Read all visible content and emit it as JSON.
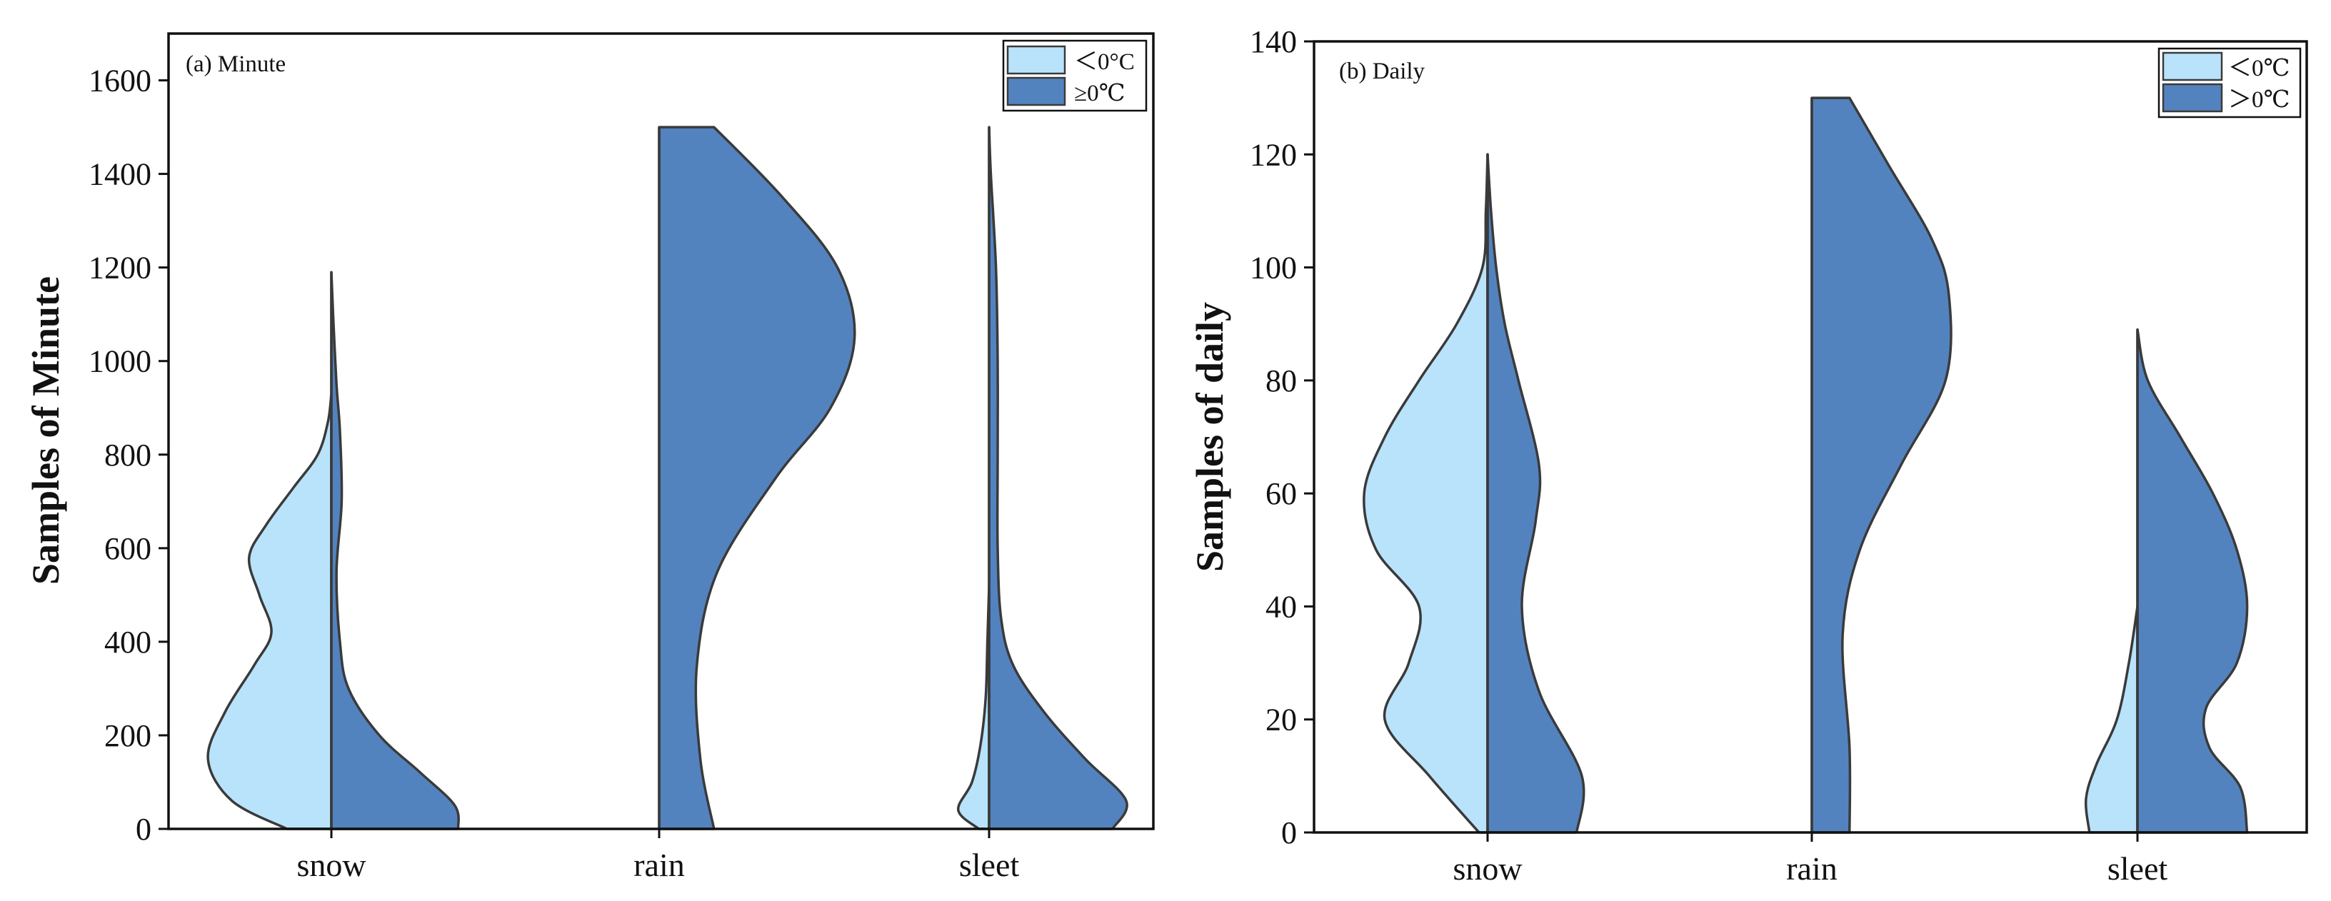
{
  "chart_data": [
    {
      "type": "split-violin",
      "panel_label": "(a) Minute",
      "categories": [
        "snow",
        "rain",
        "sleet"
      ],
      "ylabel": "Samples of Minute",
      "xlabel": "",
      "ylim": [
        0,
        1700
      ],
      "yticks": [
        0,
        200,
        400,
        600,
        800,
        1000,
        1200,
        1400,
        1600
      ],
      "legend": [
        {
          "label": "＜0°C",
          "color": "#b8e3fb",
          "side": "left"
        },
        {
          "label": "≥0℃",
          "color": "#5383bf",
          "side": "right"
        }
      ],
      "legend_position": "top-right",
      "violins": [
        {
          "category": "snow",
          "left": {
            "y": [
              0,
              60,
              150,
              250,
              350,
              420,
              500,
              580,
              650,
              730,
              800,
              870,
              930
            ],
            "w": [
              0.26,
              0.58,
              0.72,
              0.62,
              0.45,
              0.35,
              0.42,
              0.48,
              0.38,
              0.22,
              0.08,
              0.02,
              0
            ]
          },
          "right": {
            "y": [
              0,
              50,
              120,
              200,
              300,
              400,
              550,
              700,
              850,
              950,
              1100,
              1190
            ],
            "w": [
              0.74,
              0.72,
              0.52,
              0.28,
              0.1,
              0.05,
              0.03,
              0.06,
              0.05,
              0.03,
              0.01,
              0
            ]
          }
        },
        {
          "category": "rain",
          "left": null,
          "right": {
            "y": [
              0,
              150,
              350,
              550,
              750,
              900,
              1050,
              1200,
              1350,
              1500
            ],
            "w": [
              0.32,
              0.24,
              0.22,
              0.34,
              0.68,
              1.0,
              1.14,
              1.04,
              0.72,
              0.32
            ]
          }
        },
        {
          "category": "sleet",
          "left": {
            "y": [
              0,
              40,
              100,
              180,
              280,
              400,
              520
            ],
            "w": [
              0.06,
              0.18,
              0.1,
              0.05,
              0.02,
              0.01,
              0
            ]
          },
          "right": {
            "y": [
              0,
              60,
              150,
              250,
              350,
              450,
              600,
              800,
              1000,
              1200,
              1400,
              1500
            ],
            "w": [
              0.72,
              0.8,
              0.56,
              0.32,
              0.14,
              0.07,
              0.05,
              0.05,
              0.05,
              0.04,
              0.01,
              0
            ]
          }
        }
      ]
    },
    {
      "type": "split-violin",
      "panel_label": "(b) Daily",
      "categories": [
        "snow",
        "rain",
        "sleet"
      ],
      "ylabel": "Samples of daily",
      "xlabel": "",
      "ylim": [
        0,
        140
      ],
      "yticks": [
        0,
        20,
        40,
        60,
        80,
        100,
        120,
        140
      ],
      "legend": [
        {
          "label": "＜0℃",
          "color": "#b8e3fb",
          "side": "left"
        },
        {
          "label": "＞0℃",
          "color": "#5383bf",
          "side": "right"
        }
      ],
      "legend_position": "top-right",
      "violins": [
        {
          "category": "snow",
          "left": {
            "y": [
              0,
              10,
              20,
              30,
              40,
              50,
              60,
              70,
              80,
              90,
              100,
              110,
              120
            ],
            "w": [
              0.05,
              0.34,
              0.6,
              0.46,
              0.4,
              0.65,
              0.72,
              0.6,
              0.4,
              0.18,
              0.03,
              0.01,
              0
            ]
          },
          "right": {
            "y": [
              0,
              10,
              25,
              40,
              55,
              65,
              80,
              90,
              100,
              110,
              120
            ],
            "w": [
              0.52,
              0.55,
              0.3,
              0.2,
              0.28,
              0.3,
              0.18,
              0.1,
              0.05,
              0.02,
              0
            ]
          }
        },
        {
          "category": "rain",
          "left": null,
          "right": {
            "y": [
              0,
              15,
              35,
              50,
              65,
              80,
              95,
              105,
              118,
              130
            ],
            "w": [
              0.22,
              0.22,
              0.18,
              0.28,
              0.52,
              0.78,
              0.8,
              0.7,
              0.45,
              0.22
            ]
          }
        },
        {
          "category": "sleet",
          "left": {
            "y": [
              0,
              6,
              12,
              20,
              30,
              40
            ],
            "w": [
              0.28,
              0.3,
              0.24,
              0.12,
              0.05,
              0
            ]
          },
          "right": {
            "y": [
              0,
              8,
              15,
              22,
              30,
              40,
              50,
              60,
              70,
              80,
              89
            ],
            "w": [
              0.64,
              0.6,
              0.42,
              0.4,
              0.58,
              0.64,
              0.58,
              0.44,
              0.25,
              0.06,
              0
            ]
          }
        }
      ]
    }
  ]
}
